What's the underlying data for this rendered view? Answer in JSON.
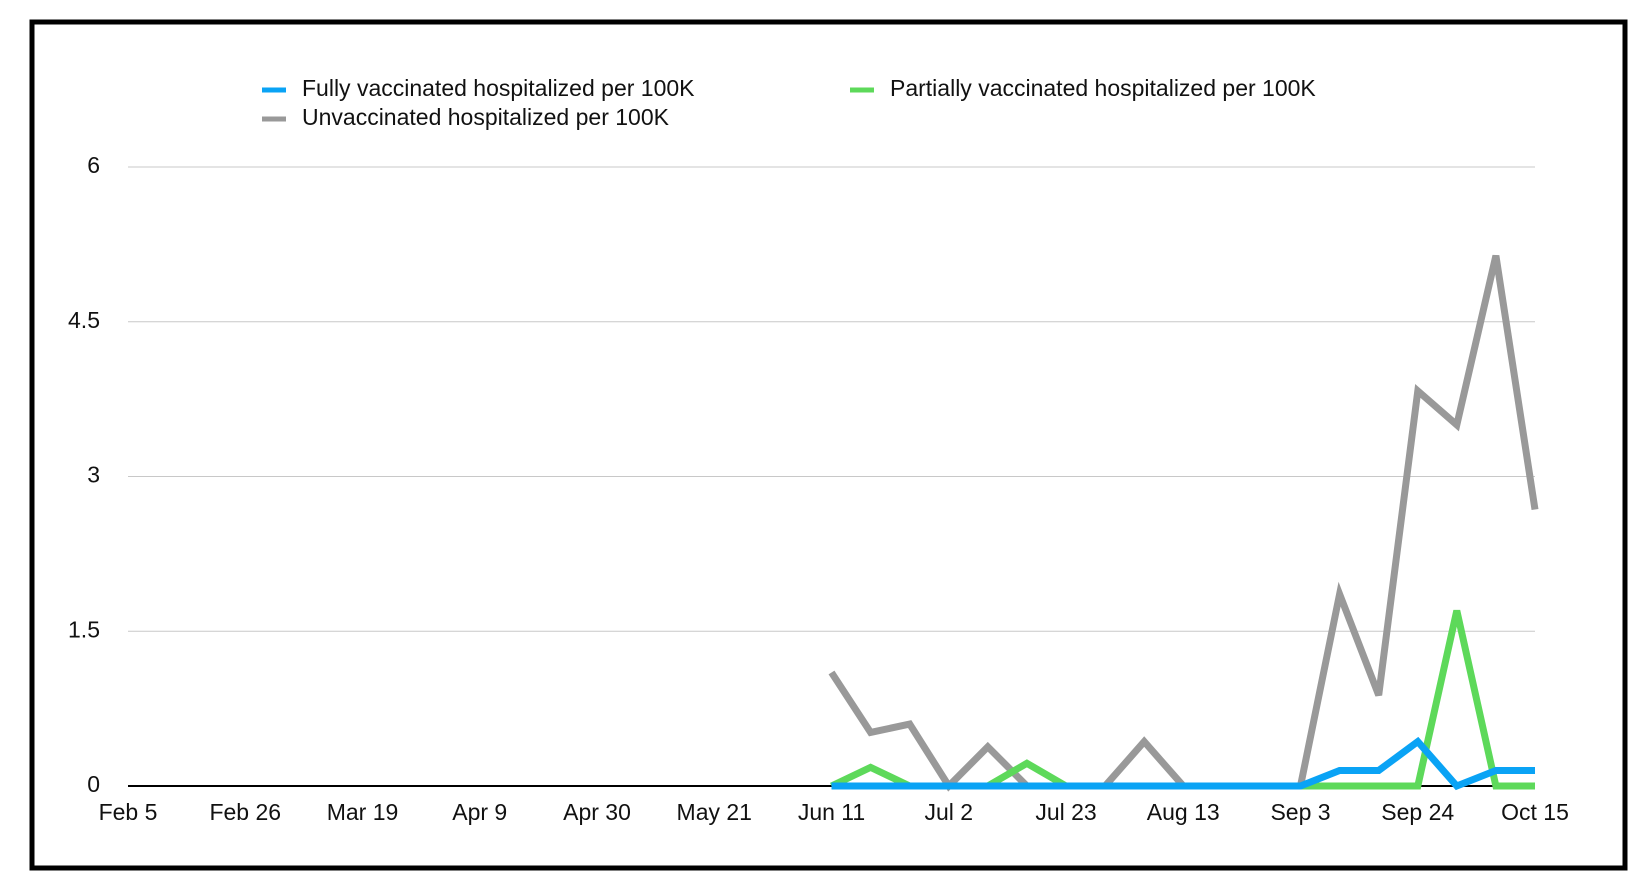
{
  "chart_data": {
    "type": "line",
    "categories": [
      "Feb 5",
      null,
      null,
      "Feb 26",
      null,
      null,
      "Mar 19",
      null,
      null,
      "Apr 9",
      null,
      null,
      "Apr 30",
      null,
      null,
      "May 21",
      null,
      null,
      "Jun 11",
      null,
      null,
      "Jul 2",
      null,
      null,
      "Jul 23",
      null,
      null,
      "Aug 13",
      null,
      null,
      "Sep 3",
      null,
      null,
      "Sep 24",
      null,
      null,
      "Oct 15"
    ],
    "series": [
      {
        "name": "Fully vaccinated hospitalized per 100K",
        "color": "#0aa3f5",
        "values": [
          null,
          null,
          null,
          null,
          null,
          null,
          null,
          null,
          null,
          null,
          null,
          null,
          null,
          null,
          null,
          null,
          null,
          null,
          0,
          0,
          0,
          0,
          0,
          0,
          0,
          0,
          0,
          0,
          0,
          0,
          0,
          0.15,
          0.15,
          0.43,
          0,
          0.15,
          0.15
        ]
      },
      {
        "name": "Partially vaccinated hospitalized per 100K",
        "color": "#5dd95a",
        "values": [
          null,
          null,
          null,
          null,
          null,
          null,
          null,
          null,
          null,
          null,
          null,
          null,
          null,
          null,
          null,
          null,
          null,
          null,
          0,
          0.18,
          0,
          0,
          0,
          0.22,
          0,
          0,
          0,
          0,
          0,
          0,
          0,
          0,
          0,
          0,
          1.7,
          0,
          0
        ]
      },
      {
        "name": "Unvaccinated hospitalized per 100K",
        "color": "#999999",
        "values": [
          null,
          null,
          null,
          null,
          null,
          null,
          null,
          null,
          null,
          null,
          null,
          null,
          null,
          null,
          null,
          null,
          null,
          null,
          1.1,
          0.52,
          0.6,
          0,
          0.38,
          0,
          0,
          0,
          0.43,
          0,
          0,
          0,
          0,
          1.86,
          0.88,
          3.83,
          3.5,
          5.14,
          2.68
        ]
      }
    ],
    "ylim": [
      0,
      6
    ],
    "yticks": [
      0,
      1.5,
      3,
      4.5,
      6
    ],
    "grid": true,
    "legend": "top"
  }
}
